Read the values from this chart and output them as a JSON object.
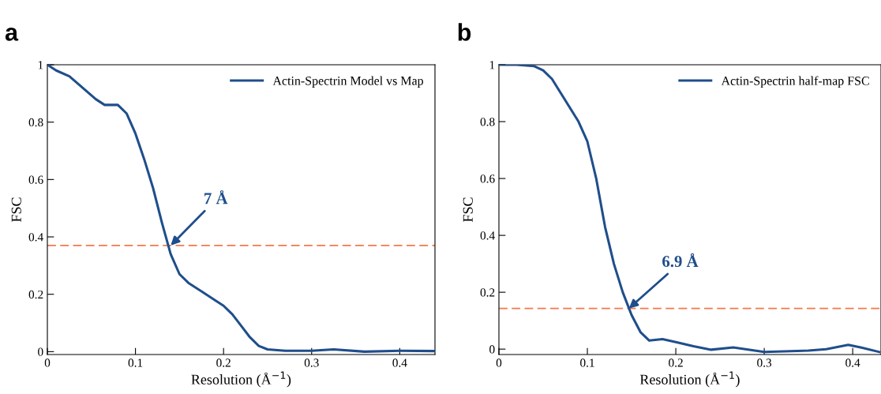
{
  "chart_data": [
    {
      "type": "line",
      "title": "a",
      "xlabel": "Resolution (Å$^{−1}$)",
      "ylabel": "FSC",
      "xlim": [
        0,
        0.44
      ],
      "ylim": [
        -0.01,
        1
      ],
      "xticks": [
        0,
        0.1,
        0.2,
        0.3,
        0.4
      ],
      "yticks": [
        0,
        0.2,
        0.4,
        0.6,
        0.8,
        1
      ],
      "legend": "top right",
      "grid": false,
      "marker": "none",
      "line_style": "solid",
      "x": [
        0,
        0.01,
        0.025,
        0.04,
        0.055,
        0.065,
        0.08,
        0.09,
        0.1,
        0.11,
        0.12,
        0.13,
        0.14,
        0.15,
        0.16,
        0.175,
        0.19,
        0.2,
        0.21,
        0.22,
        0.23,
        0.24,
        0.25,
        0.27,
        0.3,
        0.325,
        0.36,
        0.4,
        0.44
      ],
      "series": [
        {
          "name": "Actin-Spectrin Model vs Map",
          "color": "#1f4e8c",
          "values": [
            1.0,
            0.98,
            0.96,
            0.92,
            0.88,
            0.86,
            0.86,
            0.83,
            0.76,
            0.67,
            0.57,
            0.45,
            0.34,
            0.27,
            0.24,
            0.21,
            0.18,
            0.16,
            0.13,
            0.09,
            0.05,
            0.02,
            0.008,
            0.003,
            0.003,
            0.008,
            0.0,
            0.003,
            0.002
          ]
        }
      ],
      "ref_lines": [
        {
          "axis": "y",
          "value": 0.37,
          "color": "#f4784a",
          "line_style": "dashed"
        }
      ],
      "annotations": [
        {
          "text": "7 Å",
          "x": 0.14,
          "y": 0.37
        }
      ]
    },
    {
      "type": "line",
      "title": "b",
      "xlabel": "Resolution (Å$^{−1}$)",
      "ylabel": "FSC",
      "xlim": [
        0,
        0.432
      ],
      "ylim": [
        -0.019,
        1
      ],
      "xticks": [
        0,
        0.1,
        0.2,
        0.3,
        0.4
      ],
      "yticks": [
        0,
        0.2,
        0.4,
        0.6,
        0.8,
        1
      ],
      "legend": "top right",
      "grid": false,
      "marker": "none",
      "line_style": "solid",
      "x": [
        0,
        0.02,
        0.04,
        0.05,
        0.06,
        0.07,
        0.08,
        0.09,
        0.1,
        0.11,
        0.12,
        0.13,
        0.14,
        0.15,
        0.16,
        0.17,
        0.185,
        0.2,
        0.22,
        0.24,
        0.265,
        0.3,
        0.35,
        0.37,
        0.395,
        0.41,
        0.43
      ],
      "series": [
        {
          "name": "Actin-Spectrin half-map FSC",
          "color": "#1f4e8c",
          "values": [
            1.0,
            1.0,
            0.995,
            0.98,
            0.95,
            0.9,
            0.85,
            0.8,
            0.73,
            0.6,
            0.43,
            0.3,
            0.2,
            0.12,
            0.06,
            0.03,
            0.035,
            0.025,
            0.01,
            -0.002,
            0.006,
            -0.01,
            -0.005,
            0.0,
            0.015,
            0.005,
            -0.01
          ]
        }
      ],
      "ref_lines": [
        {
          "axis": "y",
          "value": 0.143,
          "color": "#f4784a",
          "line_style": "dashed"
        }
      ],
      "annotations": [
        {
          "text": "6.9 Å",
          "x": 0.147,
          "y": 0.143
        }
      ]
    }
  ]
}
